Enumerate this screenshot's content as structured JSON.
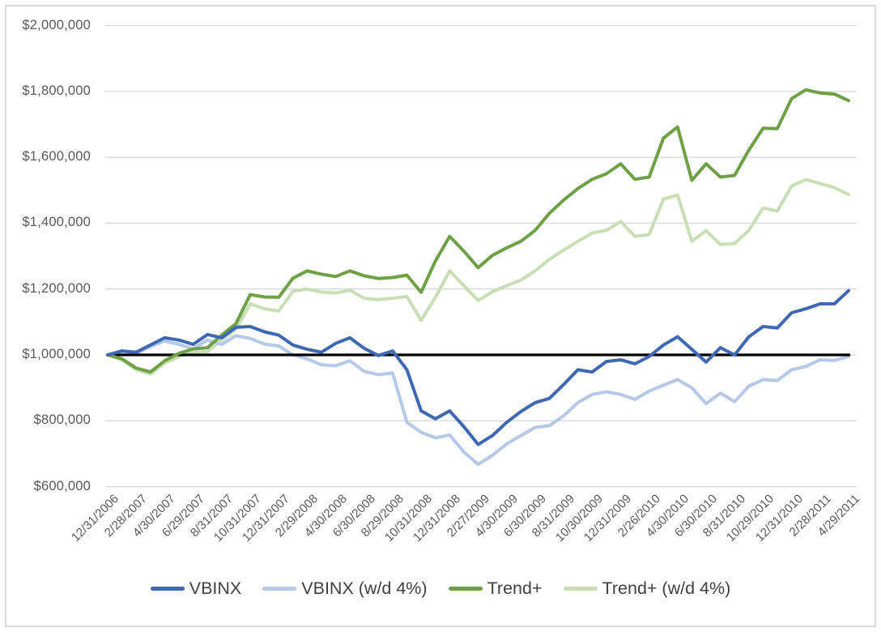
{
  "chart_data": {
    "type": "line",
    "title": "",
    "points_per_series": 53,
    "x_tick_interval_months": 2,
    "x_tick_labels": [
      "12/31/2006",
      "2/28/2007",
      "4/30/2007",
      "6/29/2007",
      "8/31/2007",
      "10/31/2007",
      "12/31/2007",
      "2/29/2008",
      "4/30/2008",
      "6/30/2008",
      "8/29/2008",
      "10/31/2008",
      "12/31/2008",
      "2/27/2009",
      "4/30/2009",
      "6/30/2009",
      "8/31/2009",
      "10/30/2009",
      "12/31/2009",
      "2/26/2010",
      "4/30/2010",
      "6/30/2010",
      "8/31/2010",
      "10/29/2010",
      "12/31/2010",
      "2/28/2011",
      "4/29/2011"
    ],
    "y_axis": {
      "min": 600000,
      "max": 2000000,
      "step": 200000,
      "tick_labels": [
        "$2,000,000",
        "$1,800,000",
        "$1,600,000",
        "$1,400,000",
        "$1,200,000",
        "$1,000,000",
        "$800,000",
        "$600,000"
      ],
      "grid": true,
      "grid_color": "#d9d9d9",
      "label_color": "#595959"
    },
    "baseline": {
      "value": 1000000,
      "color": "#000000"
    },
    "series": [
      {
        "name": "VBINX",
        "color": "#3e68b4",
        "values": [
          1000000,
          1012000,
          1008000,
          1030000,
          1052000,
          1045000,
          1032000,
          1062000,
          1052000,
          1084000,
          1086000,
          1070000,
          1060000,
          1030000,
          1017000,
          1008000,
          1035000,
          1052000,
          1020000,
          998000,
          1012000,
          955000,
          830000,
          806000,
          830000,
          782000,
          728000,
          755000,
          795000,
          828000,
          855000,
          868000,
          910000,
          955000,
          948000,
          980000,
          985000,
          973000,
          995000,
          1030000,
          1055000,
          1017000,
          978000,
          1022000,
          1000000,
          1055000,
          1086000,
          1082000,
          1128000,
          1140000,
          1155000,
          1155000,
          1195000
        ]
      },
      {
        "name": "VBINX (w/d 4%)",
        "color": "#b5c8e8",
        "values": [
          1000000,
          1010000,
          1005000,
          1025000,
          1042000,
          1032000,
          1018000,
          1045000,
          1032000,
          1058000,
          1050000,
          1033000,
          1027000,
          1000000,
          988000,
          970000,
          967000,
          982000,
          950000,
          940000,
          945000,
          795000,
          765000,
          748000,
          757000,
          705000,
          668000,
          695000,
          730000,
          755000,
          780000,
          785000,
          815000,
          855000,
          880000,
          888000,
          880000,
          865000,
          890000,
          908000,
          925000,
          900000,
          852000,
          884000,
          858000,
          905000,
          925000,
          922000,
          955000,
          965000,
          985000,
          983000,
          995000
        ]
      },
      {
        "name": "Trend+",
        "color": "#6ea046",
        "values": [
          1000000,
          988000,
          960000,
          948000,
          982000,
          1005000,
          1018000,
          1022000,
          1060000,
          1095000,
          1183000,
          1176000,
          1175000,
          1233000,
          1255000,
          1245000,
          1238000,
          1255000,
          1240000,
          1232000,
          1235000,
          1242000,
          1190000,
          1285000,
          1360000,
          1315000,
          1265000,
          1302000,
          1325000,
          1345000,
          1378000,
          1430000,
          1470000,
          1505000,
          1533000,
          1550000,
          1580000,
          1533000,
          1540000,
          1658000,
          1692000,
          1530000,
          1580000,
          1540000,
          1545000,
          1622000,
          1688000,
          1687000,
          1778000,
          1805000,
          1795000,
          1792000,
          1772000
        ]
      },
      {
        "name": "Trend+ (w/d 4%)",
        "color": "#c8dfb6",
        "values": [
          1000000,
          985000,
          955000,
          942000,
          975000,
          995000,
          1007000,
          1010000,
          1045000,
          1078000,
          1155000,
          1140000,
          1133000,
          1193000,
          1200000,
          1191000,
          1188000,
          1196000,
          1172000,
          1168000,
          1172000,
          1177000,
          1105000,
          1175000,
          1255000,
          1210000,
          1165000,
          1192000,
          1210000,
          1227000,
          1255000,
          1290000,
          1318000,
          1345000,
          1370000,
          1378000,
          1405000,
          1360000,
          1365000,
          1473000,
          1485000,
          1345000,
          1377000,
          1335000,
          1338000,
          1378000,
          1446000,
          1437000,
          1513000,
          1532000,
          1520000,
          1508000,
          1487000
        ]
      }
    ],
    "legend": {
      "position": "bottom",
      "items": [
        "VBINX",
        "VBINX (w/d 4%)",
        "Trend+",
        "Trend+ (w/d 4%)"
      ]
    }
  }
}
